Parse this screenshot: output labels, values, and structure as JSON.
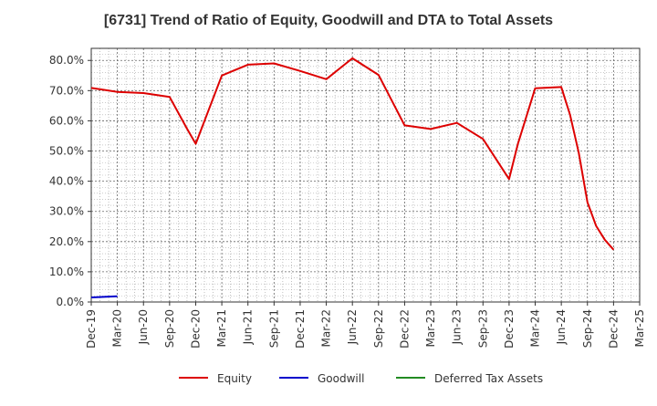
{
  "chart_data": {
    "type": "line",
    "title": "[6731]  Trend of Ratio of Equity, Goodwill and DTA to Total Assets",
    "xlabel": "",
    "ylabel": "",
    "ylim": [
      0,
      84
    ],
    "y_ticks": [
      "0.0%",
      "10.0%",
      "20.0%",
      "30.0%",
      "40.0%",
      "50.0%",
      "60.0%",
      "70.0%",
      "80.0%"
    ],
    "x_ticks": [
      "Dec-19",
      "Mar-20",
      "Jun-20",
      "Sep-20",
      "Dec-20",
      "Mar-21",
      "Jun-21",
      "Sep-21",
      "Dec-21",
      "Mar-22",
      "Jun-22",
      "Sep-22",
      "Dec-22",
      "Mar-23",
      "Jun-23",
      "Sep-23",
      "Dec-23",
      "Mar-24",
      "Jun-24",
      "Sep-24",
      "Dec-24",
      "Mar-25"
    ],
    "grid": true,
    "legend_position": "bottom",
    "series": [
      {
        "name": "Equity",
        "color": "#dd0000",
        "points": [
          [
            "Dec-19",
            70.9
          ],
          [
            "Mar-20",
            69.6
          ],
          [
            "Jun-20",
            69.2
          ],
          [
            "Sep-20",
            67.9
          ],
          [
            "Nov-20",
            57.4
          ],
          [
            "Dec-20",
            52.4
          ],
          [
            "Mar-21",
            75.0
          ],
          [
            "Jun-21",
            78.6
          ],
          [
            "Sep-21",
            79.0
          ],
          [
            "Dec-21",
            76.5
          ],
          [
            "Mar-22",
            73.8
          ],
          [
            "Jun-22",
            80.7
          ],
          [
            "Sep-22",
            75.2
          ],
          [
            "Dec-22",
            58.5
          ],
          [
            "Mar-23",
            57.3
          ],
          [
            "Jun-23",
            59.3
          ],
          [
            "Sep-23",
            54.0
          ],
          [
            "Dec-23",
            40.7
          ],
          [
            "Jan-24",
            52.2
          ],
          [
            "Mar-24",
            70.8
          ],
          [
            "Jun-24",
            71.2
          ],
          [
            "Jul-24",
            62.0
          ],
          [
            "Aug-24",
            49.5
          ],
          [
            "Sep-24",
            33.0
          ],
          [
            "Oct-24",
            25.2
          ],
          [
            "Nov-24",
            20.6
          ],
          [
            "Dec-24",
            17.3
          ]
        ]
      },
      {
        "name": "Goodwill",
        "color": "#0000cc",
        "points": [
          [
            "Dec-19",
            1.5
          ],
          [
            "Mar-20",
            1.9
          ]
        ]
      },
      {
        "name": "Deferred Tax Assets",
        "color": "#228b22",
        "points": []
      }
    ]
  }
}
